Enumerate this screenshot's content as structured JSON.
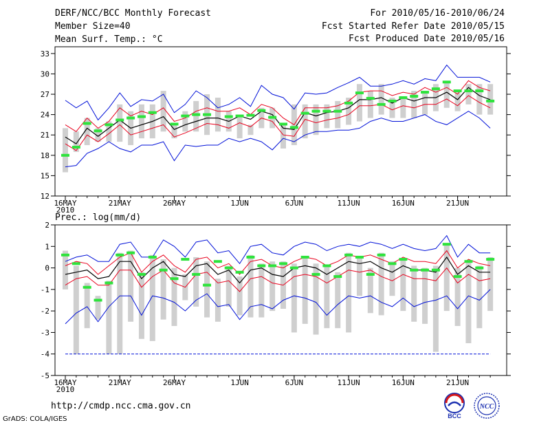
{
  "header": {
    "title": "DERF/NCC/BCC Monthly Forecast",
    "member_size": "Member Size=40",
    "for_period": "For 2010/05/16-2010/06/24",
    "started": "Fcst Started Refer Date 2010/05/15",
    "produced": "Fcst Produced Date 2010/05/16"
  },
  "footer": {
    "url": "http://cmdp.ncc.cma.gov.cn",
    "credit": "GrADS: COLA/IGES",
    "logo_bcc_text": "BCC",
    "logo_ncc_text": "NCC"
  },
  "colors": {
    "ensemble_mean": "#000000",
    "spread": "#e8001c",
    "extremes": "#0010d8",
    "observed": "#2ee33c",
    "box": "#cfcfcf"
  },
  "chart_data": [
    {
      "type": "line",
      "title": "Mean Surf. Temp.: °C",
      "ylim": [
        12,
        34
      ],
      "yticks": [
        12,
        15,
        18,
        21,
        24,
        27,
        30,
        33
      ],
      "xticks": [
        {
          "day": 0,
          "label": "16MAY"
        },
        {
          "day": 5,
          "label": "21MAY"
        },
        {
          "day": 10,
          "label": "26MAY"
        },
        {
          "day": 16,
          "label": "1JUN"
        },
        {
          "day": 21,
          "label": "6JUN"
        },
        {
          "day": 26,
          "label": "11JUN"
        },
        {
          "day": 31,
          "label": "16JUN"
        },
        {
          "day": 36,
          "label": "21JUN"
        }
      ],
      "year_label": "2010",
      "days": 40,
      "series": [
        {
          "name": "max",
          "role": "extremes",
          "values": [
            26.1,
            25.0,
            26.0,
            23.2,
            25.0,
            27.2,
            25.2,
            26.2,
            26.0,
            27.0,
            24.3,
            25.5,
            27.5,
            26.5,
            25.0,
            25.5,
            26.5,
            25.2,
            28.3,
            27.0,
            26.5,
            24.8,
            27.2,
            27.0,
            27.2,
            28.0,
            28.7,
            29.5,
            28.2,
            28.2,
            28.5,
            29.0,
            28.5,
            29.3,
            29.0,
            31.3,
            29.5,
            29.5,
            29.5,
            28.8
          ]
        },
        {
          "name": "upper",
          "role": "spread",
          "values": [
            22.5,
            21.5,
            23.5,
            22.0,
            23.0,
            25.0,
            23.8,
            24.5,
            24.0,
            25.0,
            23.0,
            23.5,
            24.5,
            25.0,
            24.5,
            24.5,
            25.0,
            24.0,
            25.5,
            25.0,
            23.5,
            22.5,
            25.0,
            25.0,
            25.0,
            25.3,
            26.0,
            27.3,
            27.5,
            27.5,
            26.8,
            27.3,
            27.0,
            28.0,
            27.3,
            28.0,
            27.0,
            29.0,
            28.0,
            27.5
          ]
        },
        {
          "name": "mean",
          "role": "ensemble_mean",
          "values": [
            20.7,
            19.7,
            22.0,
            20.8,
            22.0,
            23.2,
            22.0,
            22.5,
            23.0,
            23.7,
            21.8,
            22.5,
            23.0,
            23.5,
            23.5,
            23.0,
            23.8,
            23.3,
            24.5,
            24.0,
            22.0,
            21.8,
            24.3,
            23.8,
            24.3,
            24.5,
            25.0,
            26.2,
            26.2,
            26.5,
            25.7,
            26.5,
            26.0,
            26.5,
            26.5,
            27.3,
            26.2,
            28.0,
            26.8,
            26.2
          ]
        },
        {
          "name": "lower",
          "role": "spread",
          "values": [
            19.7,
            18.7,
            21.0,
            20.0,
            21.2,
            22.5,
            21.0,
            21.5,
            22.0,
            22.5,
            20.7,
            21.3,
            22.0,
            22.7,
            22.5,
            22.0,
            22.8,
            22.2,
            23.5,
            23.0,
            21.0,
            20.8,
            23.3,
            22.8,
            23.2,
            23.5,
            24.0,
            25.3,
            25.3,
            25.5,
            24.7,
            25.3,
            25.0,
            25.5,
            25.5,
            26.3,
            25.3,
            26.8,
            25.8,
            25.0
          ]
        },
        {
          "name": "min",
          "role": "extremes",
          "values": [
            16.3,
            16.5,
            18.3,
            19.0,
            20.0,
            19.0,
            18.5,
            19.5,
            19.5,
            20.0,
            17.2,
            19.5,
            19.3,
            19.5,
            19.5,
            20.5,
            20.0,
            20.5,
            20.0,
            18.8,
            20.5,
            20.0,
            21.0,
            21.5,
            21.5,
            21.7,
            21.7,
            22.0,
            23.0,
            23.5,
            23.0,
            23.0,
            23.5,
            24.0,
            23.0,
            22.5,
            23.5,
            24.5,
            23.5,
            22.0
          ]
        },
        {
          "name": "box_high",
          "role": "box",
          "values": [
            22.0,
            21.5,
            23.5,
            22.0,
            23.0,
            25.5,
            24.5,
            25.5,
            25.5,
            27.5,
            22.5,
            24.5,
            26.0,
            27.0,
            26.5,
            24.5,
            24.0,
            22.5,
            25.0,
            25.0,
            22.5,
            25.5,
            25.5,
            25.5,
            25.5,
            26.0,
            26.5,
            28.5,
            27.5,
            28.5,
            26.5,
            26.5,
            27.5,
            27.5,
            28.5,
            29.0,
            27.5,
            28.5,
            28.5,
            28.5
          ]
        },
        {
          "name": "box_low",
          "role": "box",
          "values": [
            15.5,
            18.5,
            19.5,
            20.0,
            20.0,
            20.0,
            19.5,
            20.5,
            20.5,
            21.5,
            20.5,
            21.5,
            21.5,
            21.0,
            21.5,
            21.5,
            20.5,
            21.0,
            22.0,
            22.0,
            19.0,
            19.5,
            20.5,
            21.0,
            22.0,
            22.0,
            22.5,
            23.0,
            23.5,
            24.0,
            23.5,
            23.5,
            23.5,
            24.0,
            24.5,
            25.0,
            24.5,
            25.5,
            24.0,
            24.0
          ]
        },
        {
          "name": "observed",
          "role": "observed",
          "values": [
            18.0,
            19.2,
            22.7,
            21.6,
            22.5,
            23.2,
            23.5,
            23.7,
            24.3,
            null,
            22.6,
            23.8,
            24.0,
            24.0,
            null,
            23.7,
            23.8,
            23.9,
            24.6,
            23.6,
            22.6,
            22.1,
            24.2,
            24.5,
            24.5,
            24.5,
            25.7,
            27.2,
            26.4,
            25.5,
            26.0,
            26.5,
            26.7,
            27.3,
            27.8,
            28.8,
            27.5,
            27.5,
            27.5,
            26.0
          ]
        }
      ]
    },
    {
      "type": "line",
      "title": "Prec.: log(mm/d)",
      "ylim": [
        -5,
        2
      ],
      "yticks": [
        -5,
        -4,
        -3,
        -2,
        -1,
        0,
        1,
        2
      ],
      "xticks": [
        {
          "day": 0,
          "label": "16MAY"
        },
        {
          "day": 5,
          "label": "21MAY"
        },
        {
          "day": 10,
          "label": "26MAY"
        },
        {
          "day": 16,
          "label": "1JUN"
        },
        {
          "day": 21,
          "label": "6JUN"
        },
        {
          "day": 26,
          "label": "11JUN"
        },
        {
          "day": 31,
          "label": "16JUN"
        },
        {
          "day": 36,
          "label": "21JUN"
        }
      ],
      "year_label": "2010",
      "days": 40,
      "series": [
        {
          "name": "max",
          "role": "extremes",
          "values": [
            0.3,
            0.5,
            0.6,
            0.3,
            0.3,
            1.1,
            1.2,
            0.5,
            0.5,
            1.3,
            1.0,
            0.5,
            1.2,
            1.3,
            0.7,
            0.8,
            0.2,
            1.0,
            1.1,
            0.7,
            0.6,
            1.0,
            1.2,
            1.1,
            0.8,
            1.0,
            1.1,
            1.0,
            1.2,
            1.1,
            0.9,
            1.1,
            0.9,
            0.8,
            0.9,
            1.5,
            0.5,
            1.1,
            0.7,
            0.7
          ]
        },
        {
          "name": "upper",
          "role": "spread",
          "values": [
            0.1,
            0.3,
            0.2,
            -0.3,
            0.1,
            0.5,
            0.7,
            -0.2,
            0.3,
            0.6,
            0.1,
            -0.2,
            0.4,
            0.5,
            0.0,
            0.2,
            -0.3,
            0.3,
            0.4,
            0.1,
            0.0,
            0.3,
            0.5,
            0.4,
            0.1,
            0.3,
            0.6,
            0.5,
            0.6,
            0.4,
            0.2,
            0.5,
            0.3,
            0.3,
            0.2,
            0.8,
            0.0,
            0.4,
            0.2,
            0.1
          ]
        },
        {
          "name": "mean",
          "role": "ensemble_mean",
          "values": [
            -0.3,
            -0.2,
            -0.1,
            -0.5,
            -0.4,
            0.3,
            0.3,
            -0.5,
            0.0,
            0.3,
            -0.3,
            -0.4,
            0.1,
            0.2,
            -0.3,
            -0.1,
            -0.7,
            -0.1,
            0.0,
            -0.3,
            -0.4,
            0.0,
            0.1,
            0.0,
            -0.3,
            0.0,
            0.3,
            0.2,
            0.3,
            0.0,
            -0.2,
            0.1,
            -0.1,
            -0.1,
            -0.2,
            0.5,
            -0.3,
            0.1,
            -0.2,
            -0.2
          ]
        },
        {
          "name": "lower",
          "role": "spread",
          "values": [
            -0.8,
            -0.5,
            -0.4,
            -0.8,
            -0.8,
            -0.1,
            -0.1,
            -0.9,
            -0.4,
            -0.1,
            -0.7,
            -0.9,
            -0.3,
            -0.2,
            -0.7,
            -0.6,
            -1.1,
            -0.5,
            -0.4,
            -0.7,
            -0.8,
            -0.4,
            -0.3,
            -0.4,
            -0.7,
            -0.4,
            -0.1,
            -0.2,
            -0.1,
            -0.4,
            -0.6,
            -0.3,
            -0.5,
            -0.5,
            -0.6,
            0.0,
            -0.7,
            -0.3,
            -0.6,
            -0.5
          ]
        },
        {
          "name": "min",
          "role": "extremes",
          "values": [
            -2.6,
            -2.1,
            -1.8,
            -2.5,
            -1.8,
            -1.3,
            -1.3,
            -2.2,
            -1.3,
            -1.4,
            -1.6,
            -2.0,
            -1.5,
            -1.2,
            -1.8,
            -1.7,
            -2.4,
            -1.8,
            -1.7,
            -1.9,
            -1.5,
            -1.3,
            -1.4,
            -1.6,
            -2.2,
            -1.7,
            -1.3,
            -1.4,
            -1.3,
            -1.6,
            -1.8,
            -1.4,
            -1.8,
            -1.6,
            -1.5,
            -1.3,
            -1.9,
            -1.3,
            -1.5,
            -1.0
          ]
        },
        {
          "name": "box_high",
          "role": "box",
          "values": [
            0.8,
            0.1,
            -0.7,
            -1.3,
            -0.6,
            0.7,
            0.8,
            -0.2,
            0.6,
            0.4,
            0.0,
            -0.3,
            0.5,
            0.3,
            -0.5,
            0.1,
            -0.4,
            0.6,
            0.2,
            0.3,
            0.3,
            0.2,
            0.5,
            0.2,
            0.1,
            -0.2,
            0.7,
            0.5,
            0.0,
            0.7,
            0.3,
            0.4,
            0.1,
            0.0,
            0.1,
            1.1,
            0.0,
            0.3,
            0.1,
            0.5
          ]
        },
        {
          "name": "box_low",
          "role": "box",
          "values": [
            -1.0,
            -4.0,
            -2.8,
            -2.4,
            -4.0,
            -4.0,
            -2.5,
            -3.3,
            -3.4,
            -2.4,
            -2.7,
            -1.5,
            -1.8,
            -2.3,
            -2.5,
            -1.8,
            -2.2,
            -2.3,
            -2.3,
            -2.0,
            -1.9,
            -3.0,
            -2.6,
            -3.1,
            -2.8,
            -2.8,
            -3.0,
            -1.3,
            -2.1,
            -2.2,
            -1.3,
            -2.0,
            -2.5,
            -2.6,
            -3.9,
            -2.0,
            -2.7,
            -3.5,
            -2.8,
            -2.0
          ]
        },
        {
          "name": "observed",
          "role": "observed",
          "values": [
            0.6,
            0.2,
            -0.9,
            -1.5,
            -0.7,
            0.6,
            0.7,
            -0.3,
            0.5,
            -0.1,
            -0.5,
            0.4,
            -0.3,
            -0.8,
            0.3,
            0.0,
            -0.2,
            0.5,
            0.1,
            0.1,
            0.2,
            0.0,
            0.5,
            -0.3,
            0.1,
            -0.4,
            0.6,
            0.5,
            -0.3,
            0.6,
            0.2,
            0.4,
            -0.1,
            -0.1,
            -0.1,
            1.1,
            -0.4,
            0.3,
            0.0,
            0.4
          ]
        }
      ]
    }
  ]
}
